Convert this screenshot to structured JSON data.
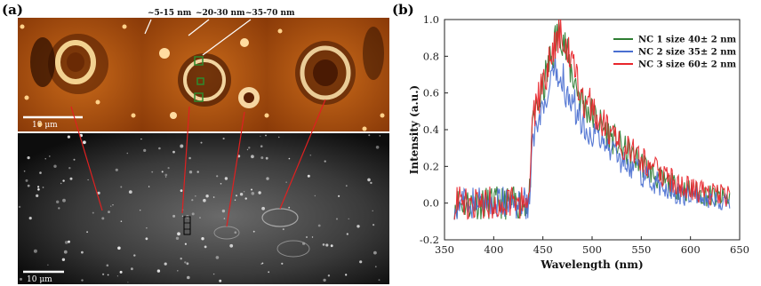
{
  "panel_a": {
    "label": "(a)",
    "scale_top": "10 μm",
    "scale_bottom": "10 μm",
    "annotations": [
      "~5-15 nm",
      "~20-30 nm",
      "~35-70 nm"
    ]
  },
  "panel_b": {
    "label": "(b)"
  },
  "chart_data": {
    "type": "line",
    "title": "",
    "xlabel": "Wavelength (nm)",
    "ylabel": "Intensity (a.u.)",
    "xlim": [
      350,
      650
    ],
    "ylim": [
      -0.2,
      1.0
    ],
    "xticks": [
      350,
      400,
      450,
      500,
      550,
      600,
      650
    ],
    "yticks": [
      -0.2,
      0.0,
      0.2,
      0.4,
      0.6,
      0.8,
      1.0
    ],
    "ytick_labels": [
      "-0.2",
      "0.0",
      "0.2",
      "0.4",
      "0.6",
      "0.8",
      "1.0"
    ],
    "legend_position": "top-right",
    "series": [
      {
        "name": "NC 1 size 40± 2 nm",
        "color": "#2e7d32",
        "x": [
          360,
          380,
          400,
          420,
          436,
          440,
          450,
          460,
          468,
          475,
          490,
          510,
          530,
          550,
          570,
          590,
          610,
          630,
          640
        ],
        "y": [
          0.0,
          0.0,
          0.0,
          0.0,
          0.0,
          0.45,
          0.62,
          0.82,
          0.98,
          0.78,
          0.55,
          0.42,
          0.3,
          0.22,
          0.12,
          0.08,
          0.05,
          0.03,
          0.02
        ]
      },
      {
        "name": "NC 2 size 35± 2 nm",
        "color": "#4a6fd0",
        "x": [
          360,
          380,
          400,
          420,
          436,
          440,
          450,
          460,
          468,
          475,
          490,
          510,
          530,
          550,
          570,
          590,
          610,
          630,
          640
        ],
        "y": [
          0.0,
          0.0,
          0.0,
          0.0,
          0.0,
          0.35,
          0.48,
          0.66,
          0.72,
          0.6,
          0.44,
          0.33,
          0.24,
          0.16,
          0.09,
          0.05,
          0.03,
          0.01,
          0.0
        ]
      },
      {
        "name": "NC 3 size 60± 2 nm",
        "color": "#e8262c",
        "x": [
          360,
          380,
          400,
          420,
          436,
          440,
          450,
          460,
          468,
          475,
          490,
          510,
          530,
          550,
          570,
          590,
          610,
          630,
          640
        ],
        "y": [
          0.0,
          0.0,
          0.0,
          0.0,
          0.0,
          0.48,
          0.65,
          0.85,
          0.97,
          0.8,
          0.58,
          0.45,
          0.33,
          0.25,
          0.15,
          0.1,
          0.06,
          0.04,
          0.03
        ]
      }
    ]
  }
}
